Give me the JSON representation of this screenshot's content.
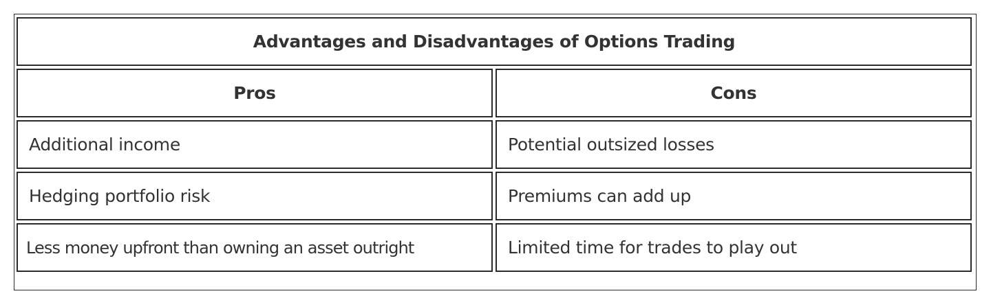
{
  "table": {
    "title": "Advantages and Disadvantages of Options Trading",
    "headers": [
      "Pros",
      "Cons"
    ],
    "rows": [
      [
        "Additional income",
        "Potential outsized losses"
      ],
      [
        "Hedging portfolio risk",
        "Premiums can add up"
      ],
      [
        "Less money upfront than owning an asset outright",
        "Limited time for trades to play out"
      ]
    ]
  }
}
